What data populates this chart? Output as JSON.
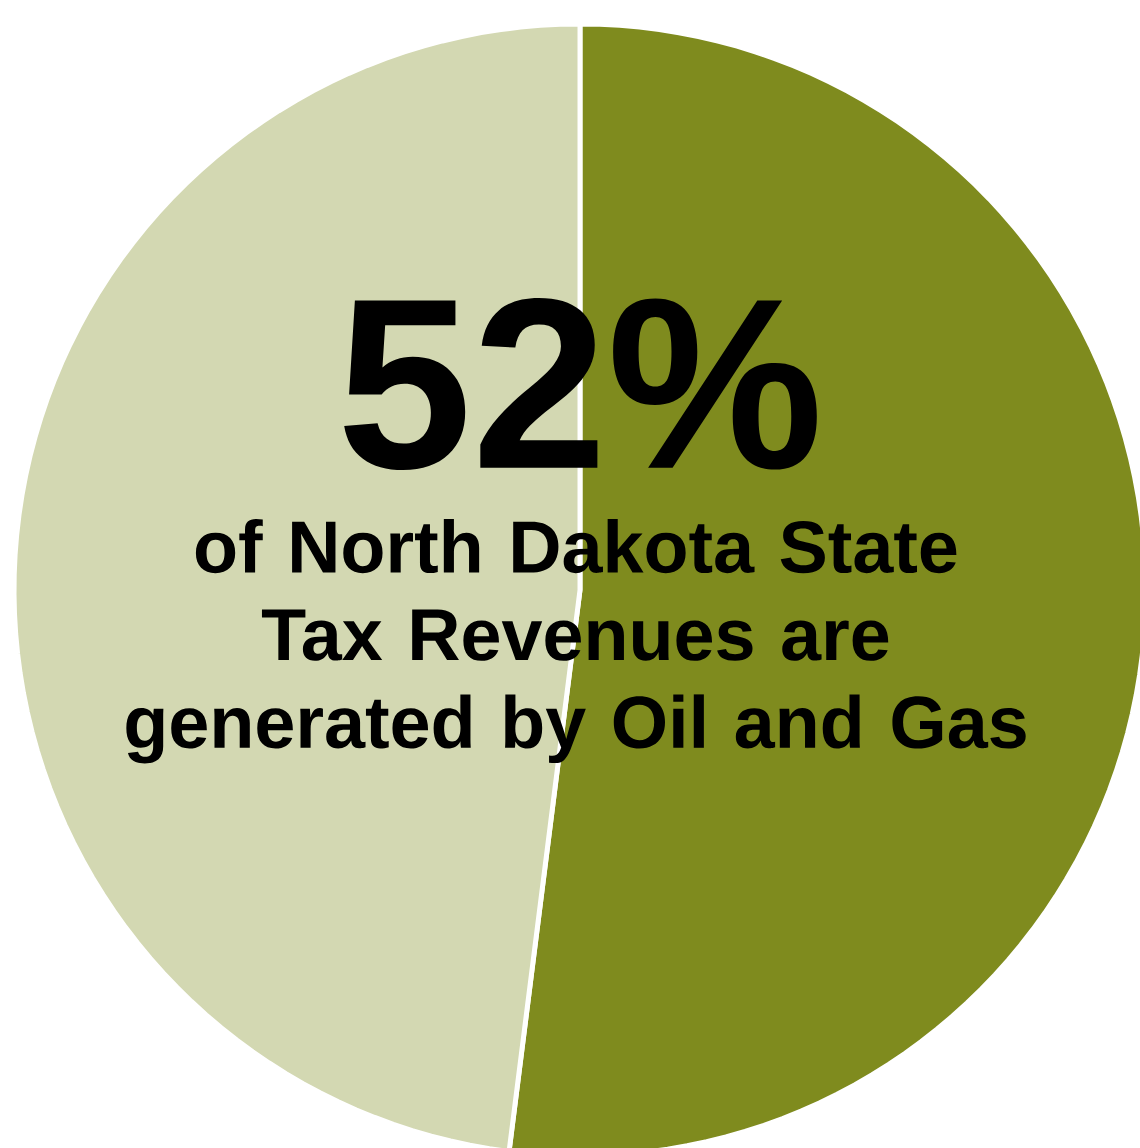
{
  "chart_data": {
    "type": "pie",
    "title": "52%",
    "subtitle": "of North Dakota State Tax Revenues are generated by Oil and Gas",
    "categories": [
      null,
      null
    ],
    "values": [
      52,
      48
    ],
    "colors": [
      "#7f8b1e",
      "#d3d8b2"
    ]
  }
}
